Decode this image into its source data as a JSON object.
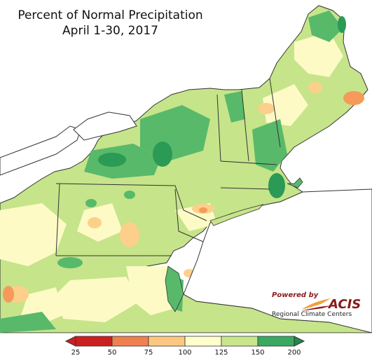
{
  "title": {
    "line1": "Percent of Normal Precipitation",
    "line2": "April 1-30, 2017"
  },
  "credit": {
    "powered_by": "Powered by",
    "name": "ACIS",
    "org": "Regional Climate Centers"
  },
  "legend": {
    "ticks": [
      "25",
      "50",
      "75",
      "100",
      "125",
      "150",
      "200"
    ],
    "colors": [
      "#cc2020",
      "#f08050",
      "#fcc880",
      "#ffffcc",
      "#c8e68c",
      "#3aa860"
    ],
    "arrow_low_color": "#cc2020",
    "arrow_high_color": "#1e8a4a"
  },
  "map_colors": {
    "water": "#ffffff",
    "dark_green": "#2a9a55",
    "green": "#58b96a",
    "light_green": "#c6e48a",
    "pale_yellow": "#fdfac6",
    "tan": "#fcd08a",
    "orange": "#f59a5a",
    "border": "#333333"
  }
}
